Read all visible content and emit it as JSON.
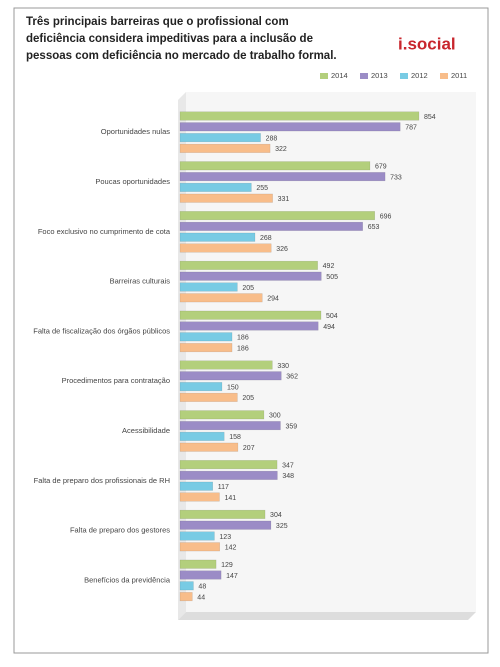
{
  "chart_data": {
    "type": "bar",
    "orientation": "horizontal",
    "title": "Três principais barreiras que o profissional com deficiência considera impeditivas para a inclusão de pessoas com deficiência no mercado de trabalho formal.",
    "logo": "i.social",
    "categories": [
      "Oportunidades nulas",
      "Poucas oportunidades",
      "Foco exclusivo no cumprimento de cota",
      "Barreiras culturais",
      "Falta de fiscalização dos órgãos públicos",
      "Procedimentos para contratação",
      "Acessibilidade",
      "Falta de preparo dos profissionais de RH",
      "Falta de preparo dos gestores",
      "Benefícios da previdência"
    ],
    "series": [
      {
        "name": "2014",
        "color": "#b3cf7c",
        "values": [
          854,
          679,
          696,
          492,
          504,
          330,
          300,
          347,
          304,
          129
        ]
      },
      {
        "name": "2013",
        "color": "#9b8cc6",
        "values": [
          787,
          733,
          653,
          505,
          494,
          362,
          359,
          348,
          325,
          147
        ]
      },
      {
        "name": "2012",
        "color": "#78cbe4",
        "values": [
          288,
          255,
          268,
          205,
          186,
          150,
          158,
          117,
          123,
          48
        ]
      },
      {
        "name": "2011",
        "color": "#f8bd8a",
        "values": [
          322,
          331,
          326,
          294,
          186,
          205,
          207,
          141,
          142,
          44
        ]
      }
    ],
    "legend": "top-right"
  }
}
